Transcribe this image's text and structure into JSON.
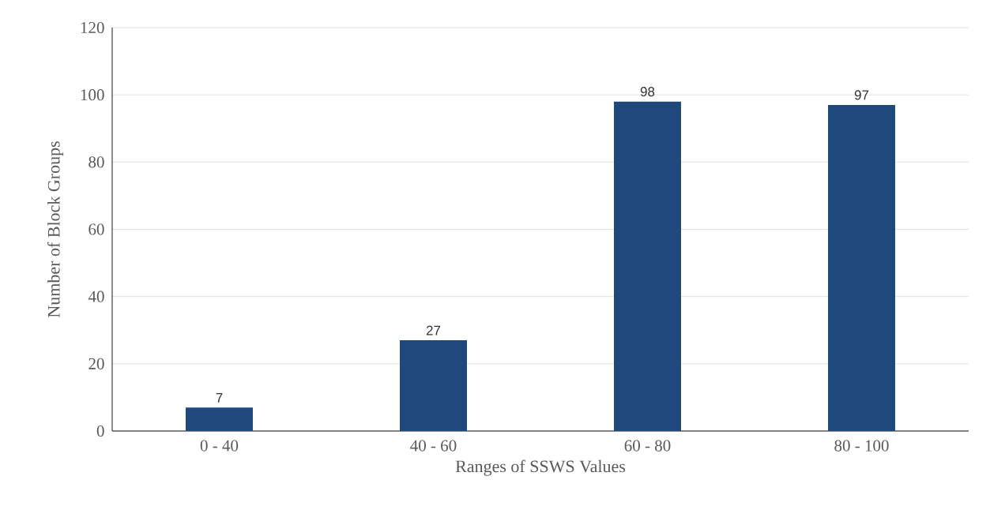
{
  "chart_data": {
    "type": "bar",
    "xlabel": "Ranges of SSWS Values",
    "ylabel": "Number of Block Groups",
    "categories": [
      "0 - 40",
      "40 - 60",
      "60 - 80",
      "80 - 100"
    ],
    "values": [
      7,
      27,
      98,
      97
    ],
    "color": "#1f497d",
    "ylim": [
      0,
      120
    ],
    "yticks": [
      0,
      20,
      40,
      60,
      80,
      100,
      120
    ],
    "grid": "y",
    "data_labels": true
  }
}
